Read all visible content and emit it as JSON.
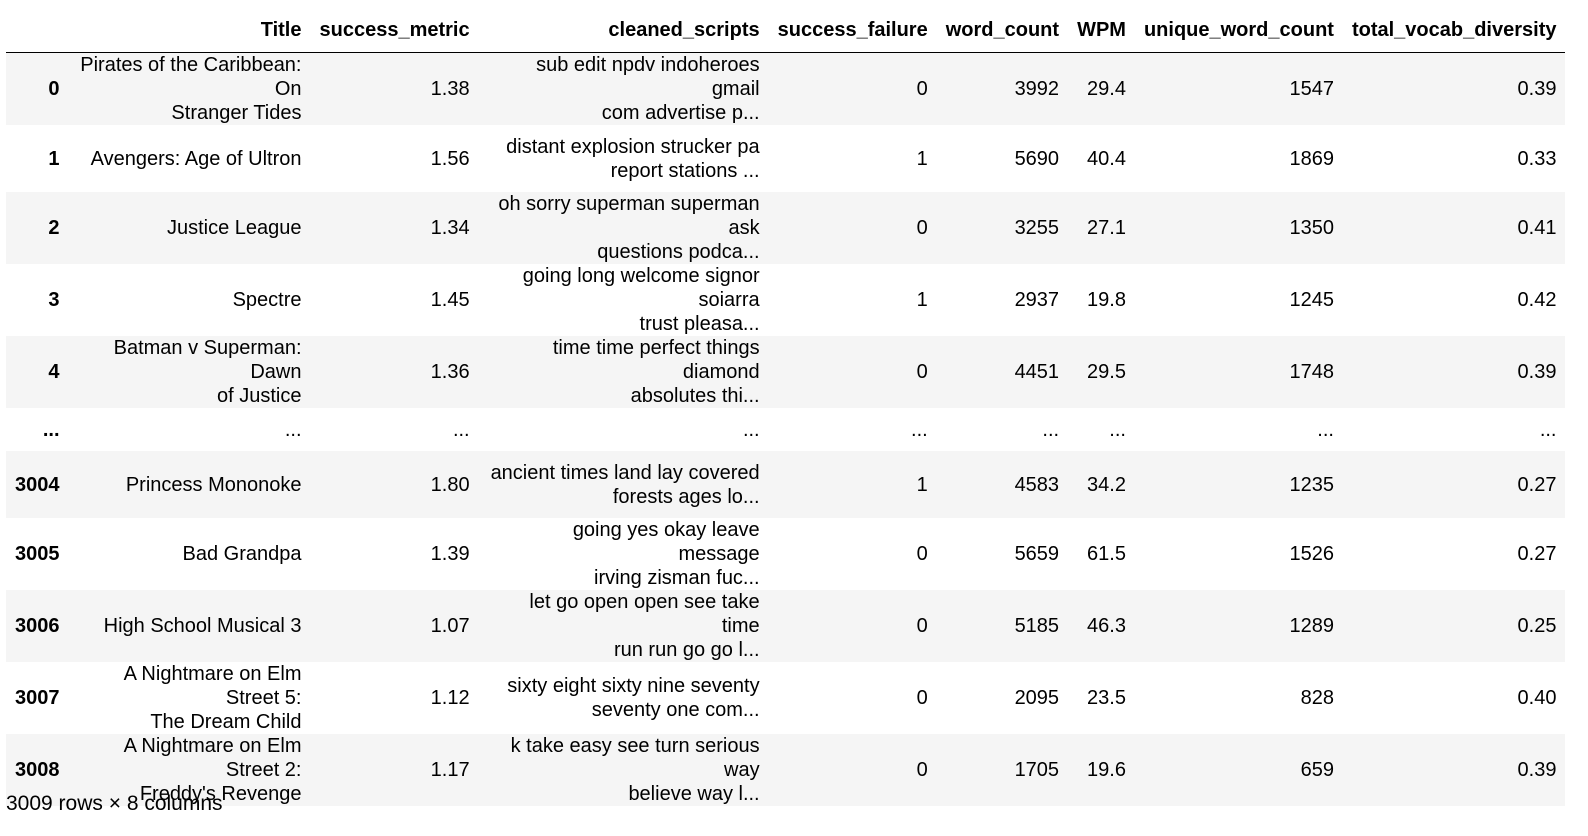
{
  "table": {
    "columns": [
      "",
      "Title",
      "success_metric",
      "cleaned_scripts",
      "success_failure",
      "word_count",
      "WPM",
      "unique_word_count",
      "total_vocab_diversity"
    ],
    "rows": [
      {
        "index": "0",
        "Title": [
          "Pirates of the Caribbean: On",
          "Stranger Tides"
        ],
        "success_metric": "1.38",
        "cleaned_scripts": [
          "sub edit npdv indoheroes gmail",
          "com advertise p..."
        ],
        "success_failure": "0",
        "word_count": "3992",
        "WPM": "29.4",
        "unique_word_count": "1547",
        "total_vocab_diversity": "0.39"
      },
      {
        "index": "1",
        "Title": [
          "Avengers: Age of Ultron"
        ],
        "success_metric": "1.56",
        "cleaned_scripts": [
          "distant explosion strucker pa",
          "report stations ..."
        ],
        "success_failure": "1",
        "word_count": "5690",
        "WPM": "40.4",
        "unique_word_count": "1869",
        "total_vocab_diversity": "0.33"
      },
      {
        "index": "2",
        "Title": [
          "Justice League"
        ],
        "success_metric": "1.34",
        "cleaned_scripts": [
          "oh sorry superman superman ask",
          "questions podca..."
        ],
        "success_failure": "0",
        "word_count": "3255",
        "WPM": "27.1",
        "unique_word_count": "1350",
        "total_vocab_diversity": "0.41"
      },
      {
        "index": "3",
        "Title": [
          "Spectre"
        ],
        "success_metric": "1.45",
        "cleaned_scripts": [
          "going long welcome signor soiarra",
          "trust pleasa..."
        ],
        "success_failure": "1",
        "word_count": "2937",
        "WPM": "19.8",
        "unique_word_count": "1245",
        "total_vocab_diversity": "0.42"
      },
      {
        "index": "4",
        "Title": [
          "Batman v Superman: Dawn",
          "of Justice"
        ],
        "success_metric": "1.36",
        "cleaned_scripts": [
          "time time perfect things diamond",
          "absolutes thi..."
        ],
        "success_failure": "0",
        "word_count": "4451",
        "WPM": "29.5",
        "unique_word_count": "1748",
        "total_vocab_diversity": "0.39"
      },
      {
        "index": "...",
        "Title": [
          "..."
        ],
        "success_metric": "...",
        "cleaned_scripts": [
          "..."
        ],
        "success_failure": "...",
        "word_count": "...",
        "WPM": "...",
        "unique_word_count": "...",
        "total_vocab_diversity": "...",
        "ellipsis": true
      },
      {
        "index": "3004",
        "Title": [
          "Princess Mononoke"
        ],
        "success_metric": "1.80",
        "cleaned_scripts": [
          "ancient times land lay covered",
          "forests ages lo..."
        ],
        "success_failure": "1",
        "word_count": "4583",
        "WPM": "34.2",
        "unique_word_count": "1235",
        "total_vocab_diversity": "0.27"
      },
      {
        "index": "3005",
        "Title": [
          "Bad Grandpa"
        ],
        "success_metric": "1.39",
        "cleaned_scripts": [
          "going yes okay leave message",
          "irving zisman fuc..."
        ],
        "success_failure": "0",
        "word_count": "5659",
        "WPM": "61.5",
        "unique_word_count": "1526",
        "total_vocab_diversity": "0.27"
      },
      {
        "index": "3006",
        "Title": [
          "High School Musical 3"
        ],
        "success_metric": "1.07",
        "cleaned_scripts": [
          "let go open open see take time",
          "run run go go l..."
        ],
        "success_failure": "0",
        "word_count": "5185",
        "WPM": "46.3",
        "unique_word_count": "1289",
        "total_vocab_diversity": "0.25"
      },
      {
        "index": "3007",
        "Title": [
          "A Nightmare on Elm Street 5:",
          "The Dream Child"
        ],
        "success_metric": "1.12",
        "cleaned_scripts": [
          "sixty eight sixty nine seventy",
          "seventy one com..."
        ],
        "success_failure": "0",
        "word_count": "2095",
        "WPM": "23.5",
        "unique_word_count": "828",
        "total_vocab_diversity": "0.40"
      },
      {
        "index": "3008",
        "Title": [
          "A Nightmare on Elm Street 2:",
          "Freddy's Revenge"
        ],
        "success_metric": "1.17",
        "cleaned_scripts": [
          "k take easy see turn serious way",
          "believe way l..."
        ],
        "success_failure": "0",
        "word_count": "1705",
        "WPM": "19.6",
        "unique_word_count": "659",
        "total_vocab_diversity": "0.39"
      }
    ]
  },
  "footer": {
    "shape_text": "3009 rows × 8 columns"
  }
}
